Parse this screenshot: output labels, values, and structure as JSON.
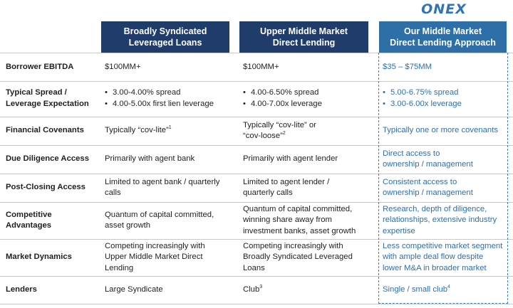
{
  "logo": "ONEX",
  "headers": {
    "col1": "Broadly Syndicated\nLeveraged Loans",
    "col2": "Upper Middle Market\nDirect Lending",
    "col3": "Our Middle Market\nDirect Lending Approach"
  },
  "rows": [
    {
      "label": "Borrower EBITDA",
      "c1": "$100MM+",
      "c2": "$100MM+",
      "c3": "$35 – $75MM"
    },
    {
      "label": "Typical Spread /\nLeverage Expectation",
      "c1": [
        "3.00-4.00% spread",
        "4.00-5.00x first lien leverage"
      ],
      "c2": [
        "4.00-6.50% spread",
        "4.00-7.00x leverage"
      ],
      "c3": [
        "5.00-6.75% spread",
        "3.00-6.00x leverage"
      ]
    },
    {
      "label": "Financial Covenants",
      "c1": "Typically “cov-lite”",
      "c1_sup": "1",
      "c2": "Typically “cov-lite” or\n“cov-loose”",
      "c2_sup": "2",
      "c3": "Typically one or more covenants"
    },
    {
      "label": "Due Diligence Access",
      "c1": "Primarily with agent bank",
      "c2": "Primarily with agent lender",
      "c3": "Direct access to\nownership / management"
    },
    {
      "label": "Post-Closing Access",
      "c1": "Limited to agent bank / quarterly\ncalls",
      "c2": "Limited to agent lender /\nquarterly calls",
      "c3": "Consistent access to\nownership / management"
    },
    {
      "label": "Competitive\nAdvantages",
      "c1": "Quantum of capital committed,\nasset growth",
      "c2": "Quantum of capital committed,\nwinning share away from\ninvestment banks, asset growth",
      "c3": "Research, depth of diligence,\nrelationships, extensive industry\nexpertise"
    },
    {
      "label": "Market Dynamics",
      "c1": "Competing increasingly with\nUpper Middle Market Direct\nLending",
      "c2": "Competing increasingly with\nBroadly Syndicated Leveraged\nLoans",
      "c3": "Less competitive market segment\nwith ample deal flow despite\nlower M&A in broader market"
    },
    {
      "label": "Lenders",
      "c1": "Large Syndicate",
      "c2": "Club",
      "c2_sup": "3",
      "c3": "Single / small club",
      "c3_sup": "4"
    }
  ]
}
